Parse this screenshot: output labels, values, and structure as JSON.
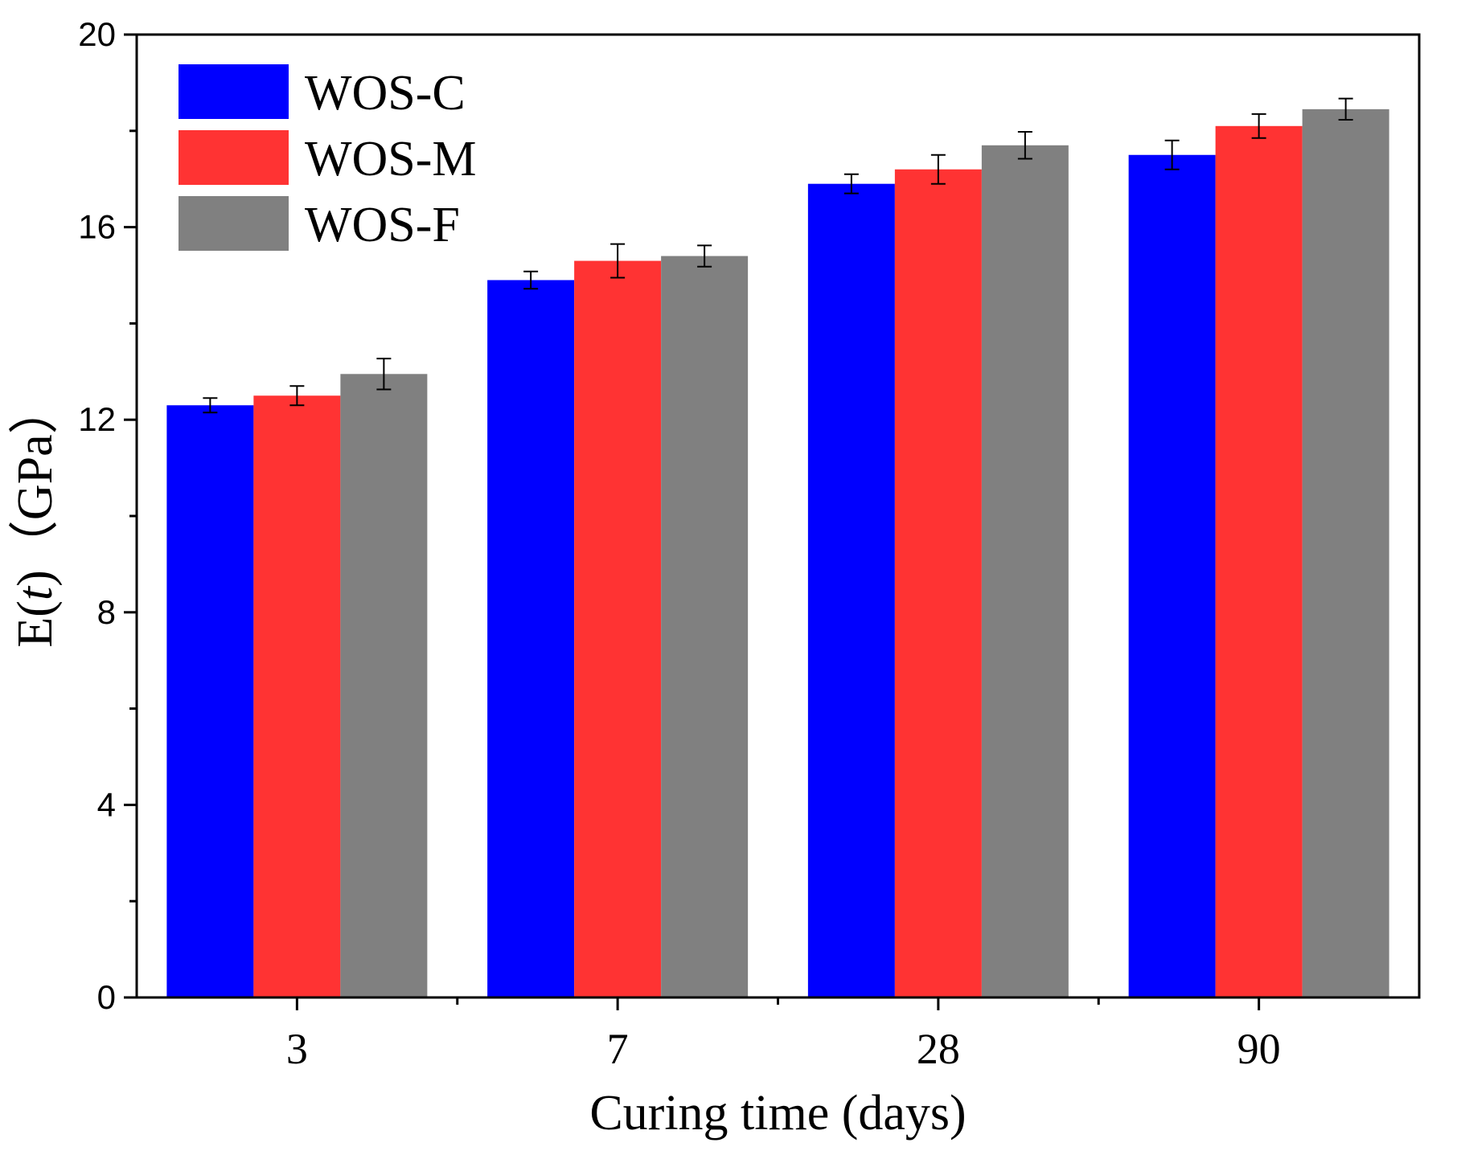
{
  "chart_data": {
    "type": "bar",
    "title": "",
    "xlabel": "Curing time (days)",
    "ylabel": "E(t)（GPa）",
    "ylabel_parts": {
      "prefix": "E(",
      "italic": "t",
      "suffix": ")（GPa）"
    },
    "categories": [
      "3",
      "7",
      "28",
      "90"
    ],
    "ylim": [
      0,
      20
    ],
    "yticks": [
      "0",
      "4",
      "8",
      "12",
      "16",
      "20"
    ],
    "grid": false,
    "legend_position": "top-left",
    "series": [
      {
        "name": "WOS-C",
        "color": "#0000ff",
        "values": [
          12.3,
          14.9,
          16.9,
          17.5
        ],
        "errors": [
          0.15,
          0.18,
          0.2,
          0.3
        ]
      },
      {
        "name": "WOS-M",
        "color": "#ff3333",
        "values": [
          12.5,
          15.3,
          17.2,
          18.1
        ],
        "errors": [
          0.2,
          0.35,
          0.3,
          0.25
        ]
      },
      {
        "name": "WOS-F",
        "color": "#808080",
        "values": [
          12.95,
          15.4,
          17.7,
          18.45
        ],
        "errors": [
          0.32,
          0.22,
          0.28,
          0.22
        ]
      }
    ]
  }
}
